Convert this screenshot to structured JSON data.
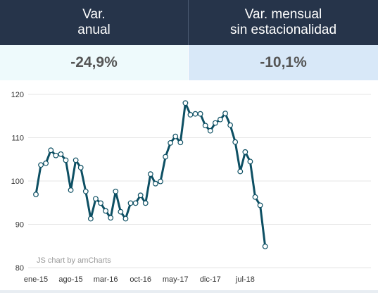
{
  "header": {
    "col1": {
      "line1": "Var.",
      "line2": "anual"
    },
    "col2": {
      "line1": "Var. mensual",
      "line2": "sin estacionalidad"
    }
  },
  "values": {
    "col1": "-24,9%",
    "col2": "-10,1%"
  },
  "credit": "JS chart by amCharts",
  "colors": {
    "header_bg": "#26344a",
    "line": "#0d4f63",
    "marker_fill": "#ffffff",
    "grid": "#e6e6e6"
  },
  "chart_data": {
    "type": "line",
    "ylim": [
      80,
      120
    ],
    "yticks": [
      80,
      90,
      100,
      110,
      120
    ],
    "xtick_labels": [
      "ene-15",
      "ago-15",
      "mar-16",
      "oct-16",
      "may-17",
      "dic-17",
      "jul-18"
    ],
    "grid": true,
    "series": [
      {
        "values": [
          96.9,
          103.7,
          104.1,
          107.1,
          105.9,
          106.2,
          104.8,
          97.9,
          104.8,
          103.1,
          97.6,
          91.3,
          95.9,
          94.9,
          93.1,
          91.5,
          97.6,
          92.9,
          91.3,
          94.9,
          94.9,
          96.7,
          94.9,
          101.6,
          99.4,
          99.9,
          105.6,
          108.8,
          110.3,
          108.9,
          118.0,
          115.3,
          115.5,
          115.5,
          112.8,
          111.6,
          113.4,
          114.2,
          115.6,
          112.9,
          109.0,
          102.2,
          106.7,
          104.5,
          96.3,
          94.4,
          84.9
        ]
      }
    ]
  }
}
